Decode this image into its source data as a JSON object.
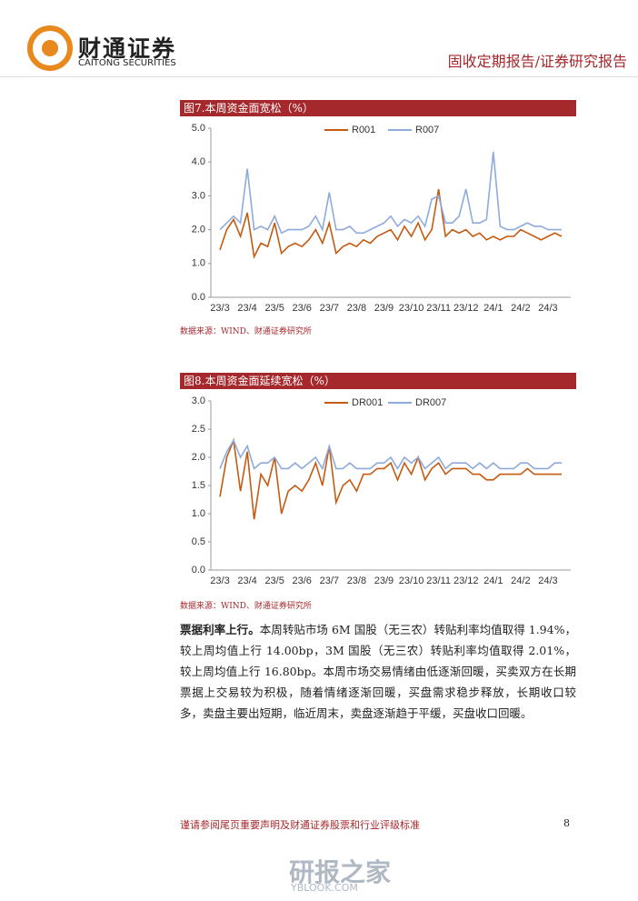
{
  "header": {
    "brand": "财通证券",
    "brand_en": "CAITONG SECURITIES",
    "report_type": "固收定期报告/证券研究报告"
  },
  "chart_data": [
    {
      "type": "line",
      "title": "图7.本周资金面宽松（%）",
      "source": "数据来源：WIND、财通证券研究所",
      "categories": [
        "23/3",
        null,
        null,
        null,
        "23/4",
        null,
        null,
        null,
        "23/5",
        null,
        null,
        null,
        "23/6",
        null,
        null,
        null,
        "23/7",
        null,
        null,
        null,
        "23/8",
        null,
        null,
        null,
        "23/9",
        null,
        null,
        null,
        "23/10",
        null,
        null,
        null,
        "23/11",
        null,
        null,
        null,
        "23/12",
        null,
        null,
        null,
        "24/1",
        null,
        null,
        null,
        "24/2",
        null,
        null,
        null,
        "24/3",
        null,
        null
      ],
      "series": [
        {
          "name": "R001",
          "color": "#c55a11",
          "values": [
            1.4,
            2.0,
            2.3,
            1.8,
            2.5,
            1.2,
            1.6,
            1.5,
            2.2,
            1.3,
            1.5,
            1.6,
            1.5,
            1.7,
            2.0,
            1.6,
            2.2,
            1.3,
            1.5,
            1.6,
            1.5,
            1.7,
            1.6,
            1.8,
            1.9,
            2.0,
            1.7,
            2.1,
            1.8,
            2.2,
            1.7,
            2.0,
            3.2,
            1.8,
            2.0,
            1.9,
            2.0,
            1.8,
            1.9,
            1.7,
            1.8,
            1.7,
            1.8,
            1.8,
            2.0,
            1.9,
            1.8,
            1.7,
            1.8,
            1.9,
            1.8
          ]
        },
        {
          "name": "R007",
          "color": "#8faadc",
          "values": [
            2.0,
            2.2,
            2.4,
            2.2,
            3.8,
            2.0,
            2.1,
            2.0,
            2.4,
            1.9,
            2.0,
            2.0,
            2.0,
            2.1,
            2.4,
            2.0,
            3.1,
            2.0,
            2.0,
            2.1,
            1.9,
            1.9,
            2.0,
            2.1,
            2.2,
            2.4,
            2.1,
            2.3,
            2.2,
            2.4,
            2.1,
            2.9,
            3.0,
            2.2,
            2.2,
            2.4,
            3.2,
            2.2,
            2.2,
            2.3,
            4.3,
            2.1,
            2.0,
            2.0,
            2.1,
            2.2,
            2.1,
            2.1,
            2.0,
            2.0,
            2.0
          ]
        }
      ],
      "ylim": [
        0,
        5
      ],
      "yticks": [
        {
          "value": 0,
          "label": "0.0"
        },
        {
          "value": 1,
          "label": "1.0"
        },
        {
          "value": 2,
          "label": "2.0"
        },
        {
          "value": 3,
          "label": "3.0"
        },
        {
          "value": 4,
          "label": "4.0"
        },
        {
          "value": 5,
          "label": "5.0"
        }
      ]
    },
    {
      "type": "line",
      "title": "图8.本周资金面延续宽松（%）",
      "source": "数据来源：WIND、财通证券研究所",
      "categories": [
        "23/3",
        null,
        null,
        null,
        "23/4",
        null,
        null,
        null,
        "23/5",
        null,
        null,
        null,
        "23/6",
        null,
        null,
        null,
        "23/7",
        null,
        null,
        null,
        "23/8",
        null,
        null,
        null,
        "23/9",
        null,
        null,
        null,
        "23/10",
        null,
        null,
        null,
        "23/11",
        null,
        null,
        null,
        "23/12",
        null,
        null,
        null,
        "24/1",
        null,
        null,
        null,
        "24/2",
        null,
        null,
        null,
        "24/3",
        null,
        null
      ],
      "series": [
        {
          "name": "DR001",
          "color": "#c55a11",
          "values": [
            1.3,
            2.0,
            2.3,
            1.4,
            2.1,
            0.9,
            1.7,
            1.5,
            2.0,
            1.0,
            1.4,
            1.5,
            1.4,
            1.6,
            1.9,
            1.5,
            2.2,
            1.2,
            1.5,
            1.6,
            1.4,
            1.7,
            1.7,
            1.8,
            1.8,
            1.9,
            1.6,
            1.9,
            1.7,
            2.0,
            1.6,
            1.8,
            1.9,
            1.7,
            1.8,
            1.8,
            1.8,
            1.7,
            1.7,
            1.6,
            1.6,
            1.7,
            1.7,
            1.7,
            1.7,
            1.8,
            1.7,
            1.7,
            1.7,
            1.7,
            1.7
          ]
        },
        {
          "name": "DR007",
          "color": "#8faadc",
          "values": [
            1.8,
            2.1,
            2.3,
            2.0,
            2.2,
            1.8,
            1.9,
            1.9,
            2.0,
            1.8,
            1.8,
            1.9,
            1.8,
            1.9,
            2.0,
            1.8,
            2.2,
            1.8,
            1.8,
            1.9,
            1.8,
            1.8,
            1.8,
            1.9,
            1.9,
            2.0,
            1.8,
            2.0,
            1.9,
            2.0,
            1.8,
            1.9,
            2.0,
            1.8,
            1.9,
            1.9,
            1.9,
            1.8,
            1.9,
            1.8,
            1.9,
            1.8,
            1.8,
            1.8,
            1.9,
            1.9,
            1.8,
            1.8,
            1.8,
            1.9,
            1.9
          ]
        }
      ],
      "ylim": [
        0,
        3
      ],
      "yticks": [
        {
          "value": 0,
          "label": "0.0"
        },
        {
          "value": 0.5,
          "label": "0.5"
        },
        {
          "value": 1,
          "label": "1.0"
        },
        {
          "value": 1.5,
          "label": "1.5"
        },
        {
          "value": 2,
          "label": "2.0"
        },
        {
          "value": 2.5,
          "label": "2.5"
        },
        {
          "value": 3,
          "label": "3.0"
        }
      ]
    }
  ],
  "paragraph": {
    "lead": "票据利率上行。",
    "text": "本周转贴市场 6M 国股（无三农）转贴利率均值取得 1.94%，较上周均值上行 14.00bp，3M 国股（无三农）转贴利率均值取得 2.01%，较上周均值上行 16.80bp。本周市场交易情绪由低逐渐回暖，买卖双方在长期票据上交易较为积极，随着情绪逐渐回暖，买盘需求稳步释放，长期收口较多，卖盘主要出短期，临近周末，卖盘逐渐趋于平缓，买盘收口回暖。"
  },
  "footer": {
    "disclaimer": "谨请参阅尾页重要声明及财通证券股票和行业评级标准",
    "page": "8"
  },
  "watermark": {
    "name": "研报之家",
    "site": "YBLOOK.COM"
  }
}
